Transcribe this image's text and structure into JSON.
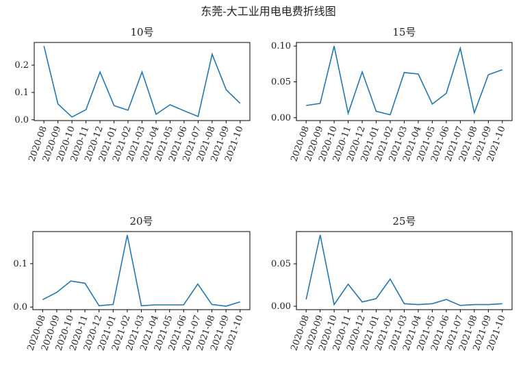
{
  "title": "东莞-大工业用电电费折线图",
  "chart_data": [
    {
      "type": "line",
      "title": "10号",
      "color": "#1f77b4",
      "categories": [
        "2020-08",
        "2020-09",
        "2020-10",
        "2020-11",
        "2020-12",
        "2021-01",
        "2021-02",
        "2021-03",
        "2021-04",
        "2021-05",
        "2021-06",
        "2021-07",
        "2021-08",
        "2021-09",
        "2021-10"
      ],
      "values": [
        0.27,
        0.058,
        0.01,
        0.037,
        0.175,
        0.052,
        0.035,
        0.175,
        0.02,
        0.055,
        0.033,
        0.012,
        0.24,
        0.11,
        0.06
      ],
      "ylim": [
        -0.003,
        0.283
      ],
      "yticks": [
        {
          "value": 0,
          "label": "0.0"
        },
        0.1,
        0.2
      ]
    },
    {
      "type": "line",
      "title": "15号",
      "color": "#1f77b4",
      "categories": [
        "2020-08",
        "2020-09",
        "2020-10",
        "2020-11",
        "2020-12",
        "2021-01",
        "2021-02",
        "2021-03",
        "2021-04",
        "2021-05",
        "2021-06",
        "2021-07",
        "2021-08",
        "2021-09",
        "2021-10"
      ],
      "values": [
        0.017,
        0.02,
        0.1,
        0.006,
        0.064,
        0.009,
        0.004,
        0.063,
        0.061,
        0.019,
        0.034,
        0.097,
        0.007,
        0.06,
        0.067
      ],
      "ylim": [
        -0.004,
        0.105
      ],
      "yticks": [
        {
          "value": 0,
          "label": "0.00"
        },
        0.05,
        {
          "value": 0.1,
          "label": "0.10"
        }
      ]
    },
    {
      "type": "line",
      "title": "20号",
      "color": "#1f77b4",
      "categories": [
        "2020-08",
        "2020-09",
        "2020-10",
        "2020-11",
        "2020-12",
        "2021-01",
        "2021-02",
        "2021-03",
        "2021-04",
        "2021-05",
        "2021-06",
        "2021-07",
        "2021-08",
        "2021-09",
        "2021-10"
      ],
      "values": [
        0.017,
        0.034,
        0.06,
        0.055,
        0.003,
        0.006,
        0.166,
        0.003,
        0.005,
        0.005,
        0.005,
        0.053,
        0.006,
        0.002,
        0.012
      ],
      "ylim": [
        -0.006,
        0.174
      ],
      "yticks": [
        {
          "value": 0,
          "label": "0.0"
        },
        0.1
      ]
    },
    {
      "type": "line",
      "title": "25号",
      "color": "#1f77b4",
      "categories": [
        "2020-08",
        "2020-09",
        "2020-10",
        "2020-11",
        "2020-12",
        "2021-01",
        "2021-02",
        "2021-03",
        "2021-04",
        "2021-05",
        "2021-06",
        "2021-07",
        "2021-08",
        "2021-09",
        "2021-10"
      ],
      "values": [
        0.008,
        0.084,
        0.002,
        0.026,
        0.005,
        0.009,
        0.032,
        0.003,
        0.002,
        0.003,
        0.008,
        0.001,
        0.002,
        0.002,
        0.003
      ],
      "ylim": [
        -0.004,
        0.088
      ],
      "yticks": [
        {
          "value": 0,
          "label": "0.00"
        },
        0.05
      ]
    }
  ]
}
